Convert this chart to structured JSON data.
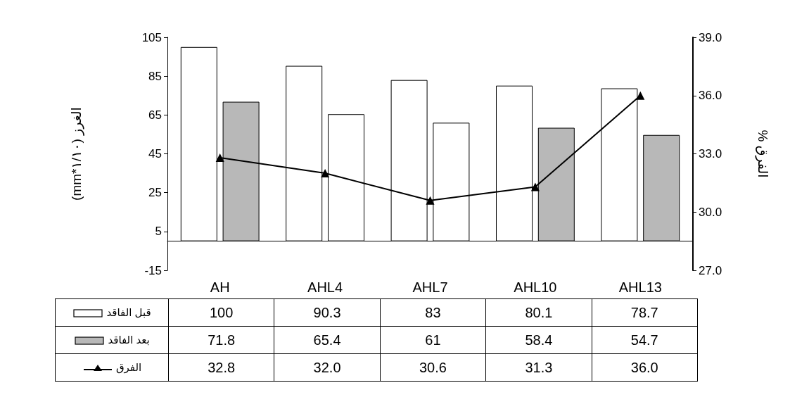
{
  "chart_data": {
    "type": "bar",
    "categories": [
      "AH",
      "AHL4",
      "AHL7",
      "AHL10",
      "AHL13"
    ],
    "series": [
      {
        "name": "قبل الفاقد",
        "color": "#ffffff",
        "values": [
          100,
          90.3,
          83,
          80.1,
          78.7
        ]
      },
      {
        "name": "بعد الفاقد",
        "color": "#b8b8b8",
        "colors": [
          "#b8b8b8",
          "#ffffff",
          "#ffffff",
          "#b8b8b8",
          "#b8b8b8"
        ],
        "values": [
          71.8,
          65.4,
          61,
          58.4,
          54.7
        ]
      },
      {
        "name": "الفرق",
        "type": "line",
        "axis": "y2",
        "color": "#000000",
        "marker": "triangle",
        "values": [
          32.8,
          32.0,
          30.6,
          31.3,
          36.0
        ],
        "value_labels": [
          "32.8",
          "32.0",
          "30.6",
          "31.3",
          "36.0"
        ]
      }
    ],
    "ylabel": "(mm*١/١٠) الغرز",
    "y2label": "% الفرق",
    "ylim": [
      -15,
      105
    ],
    "yticks": [
      -15,
      5,
      25,
      45,
      65,
      85,
      105
    ],
    "y2lim": [
      27,
      39
    ],
    "y2ticks": [
      {
        "value": 27,
        "label": "27.0"
      },
      {
        "value": 30,
        "label": "30.0"
      },
      {
        "value": 33,
        "label": "33.0"
      },
      {
        "value": 36,
        "label": "36.0"
      },
      {
        "value": 39,
        "label": "39.0"
      }
    ],
    "grid": false,
    "legend": "bottom left",
    "data_labels": true
  }
}
